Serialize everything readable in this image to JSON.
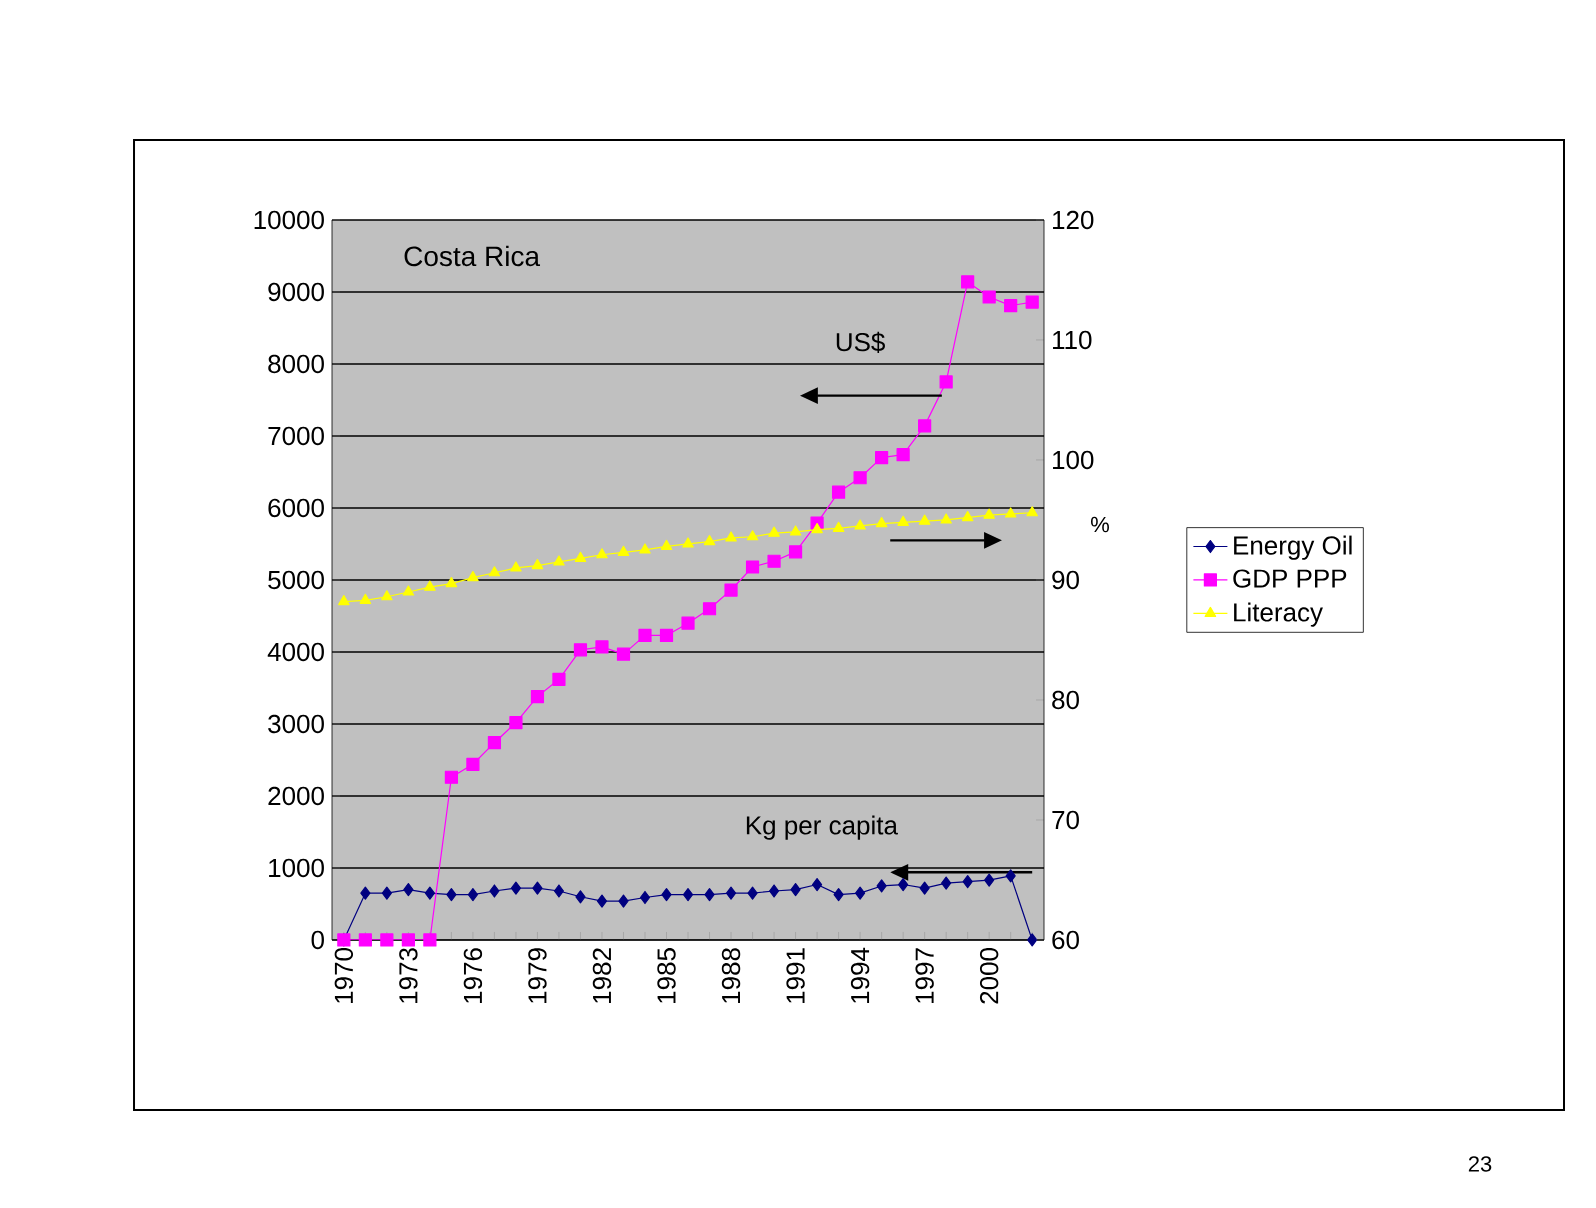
{
  "chart_data": {
    "type": "line",
    "title": "Costa Rica",
    "y2label": "%",
    "categories": [
      "1970",
      null,
      null,
      "1973",
      null,
      null,
      "1976",
      null,
      null,
      "1979",
      null,
      null,
      "1982",
      null,
      null,
      "1985",
      null,
      null,
      "1988",
      null,
      null,
      "1991",
      null,
      null,
      "1994",
      null,
      null,
      "1997",
      null,
      null,
      "2000",
      null,
      null
    ],
    "series": [
      {
        "name": "Energy Oil",
        "color": "#000080",
        "marker": "diamond",
        "values": [
          0,
          650,
          650,
          700,
          650,
          630,
          630,
          680,
          720,
          720,
          680,
          600,
          540,
          540,
          590,
          630,
          630,
          630,
          650,
          650,
          680,
          700,
          770,
          630,
          650,
          750,
          770,
          720,
          790,
          810,
          830,
          890,
          0
        ]
      },
      {
        "name": "GDP PPP",
        "color": "#ff00ff",
        "marker": "square",
        "values": [
          0,
          0,
          0,
          0,
          0,
          2260,
          2440,
          2740,
          3020,
          3380,
          3620,
          4030,
          4070,
          3970,
          4230,
          4230,
          4400,
          4600,
          4860,
          5180,
          5260,
          5390,
          5790,
          6220,
          6420,
          6700,
          6740,
          7140,
          7750,
          9140,
          8930,
          8810,
          8860
        ]
      },
      {
        "name": "Literacy",
        "color": "#ffff00",
        "marker": "triangle",
        "axis": "y2",
        "values": [
          88.2,
          88.3,
          88.6,
          89.0,
          89.4,
          89.7,
          90.2,
          90.6,
          91.0,
          91.2,
          91.5,
          91.8,
          92.1,
          92.3,
          92.5,
          92.8,
          93.0,
          93.2,
          93.5,
          93.6,
          93.9,
          94.0,
          94.2,
          94.3,
          94.5,
          94.7,
          94.8,
          94.9,
          95.0,
          95.2,
          95.4,
          95.5,
          95.6
        ]
      }
    ],
    "ylim": [
      0,
      10000
    ],
    "yticks": [
      0,
      1000,
      2000,
      3000,
      4000,
      5000,
      6000,
      7000,
      8000,
      9000,
      10000
    ],
    "y2lim": [
      60,
      120
    ],
    "y2ticks": [
      60,
      70,
      80,
      90,
      100,
      110,
      120
    ],
    "grid": "y",
    "legend": "right",
    "line_style": "solid",
    "annotations": [
      "US$",
      "Kg per capita",
      "23"
    ]
  }
}
